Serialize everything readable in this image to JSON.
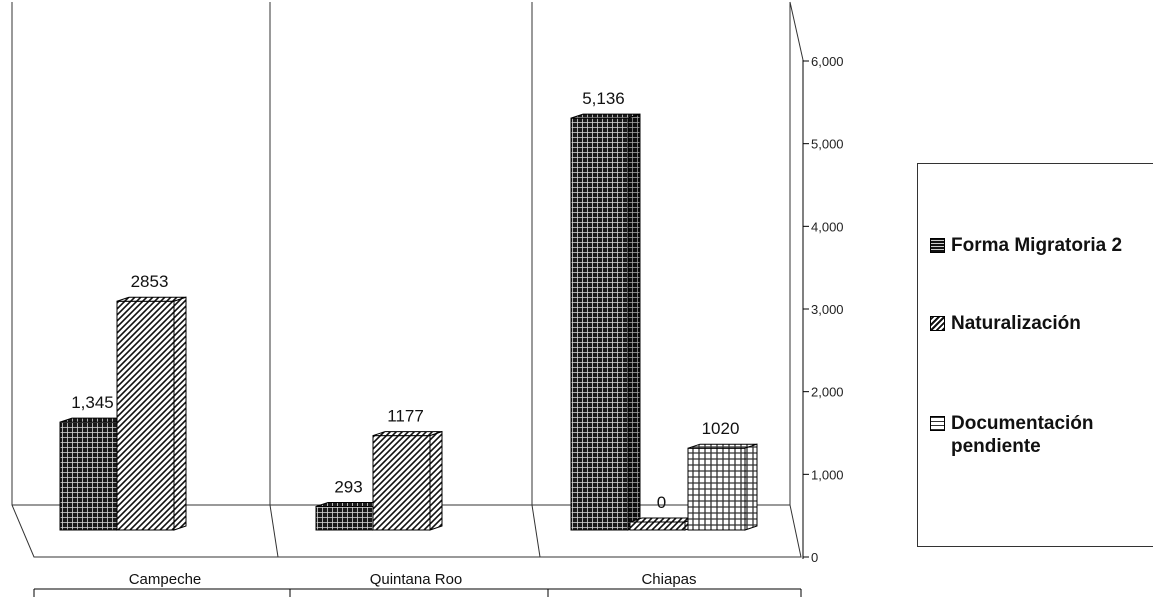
{
  "chart_data": {
    "type": "bar",
    "categories": [
      "Campeche",
      "Quintana Roo",
      "Chiapas"
    ],
    "series": [
      {
        "name": "Forma Migratoria 2",
        "values": [
          1345,
          293,
          5136
        ],
        "labels": [
          "1,345",
          "293",
          "5,136"
        ],
        "pattern": "crosshatch-dark",
        "color": "#2a2a2a"
      },
      {
        "name": "Naturalización",
        "values": [
          2853,
          1177,
          0
        ],
        "labels": [
          "2853",
          "1177",
          "0"
        ],
        "pattern": "diagonal",
        "color": "#555555"
      },
      {
        "name": "Documentación pendiente",
        "values": [
          null,
          null,
          1020
        ],
        "labels": [
          "",
          "",
          "1020"
        ],
        "pattern": "grid-light",
        "color": "#777777"
      }
    ],
    "yticks": [
      "0",
      "1,000",
      "2,000",
      "3,000",
      "4,000",
      "5,000",
      "6,000"
    ],
    "ylim": [
      0,
      6000
    ],
    "legend_position": "right",
    "style": "3d-clustered-column",
    "grid": false
  },
  "legend": {
    "items": [
      "Forma Migratoria 2",
      "Naturalización",
      "Documentación pendiente"
    ]
  }
}
